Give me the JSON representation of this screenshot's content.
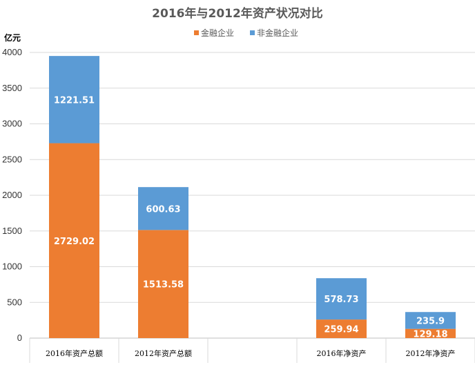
{
  "chart_data": {
    "type": "bar",
    "stacked": true,
    "title": "2016年与2012年资产状况对比",
    "ylabel": "亿元",
    "xlabel": "",
    "ylim": [
      0,
      4000
    ],
    "yticks": [
      0,
      500,
      1000,
      1500,
      2000,
      2500,
      3000,
      3500,
      4000
    ],
    "grid": true,
    "legend_position": "top-center",
    "categories": [
      "2016年资产总额",
      "2012年资产总额",
      "",
      "2016年净资产",
      "2012年净资产"
    ],
    "series": [
      {
        "name": "金融企业",
        "color": "#ED7D31",
        "values": [
          2729.02,
          1513.58,
          null,
          259.94,
          129.18
        ],
        "labels": [
          "2729.02",
          "1513.58",
          "",
          "259.94",
          "129.18"
        ]
      },
      {
        "name": "非金融企业",
        "color": "#5B9BD5",
        "values": [
          1221.51,
          600.63,
          null,
          578.73,
          235.9
        ],
        "labels": [
          "1221.51",
          "600.63",
          "",
          "578.73",
          "235.9"
        ]
      }
    ]
  }
}
